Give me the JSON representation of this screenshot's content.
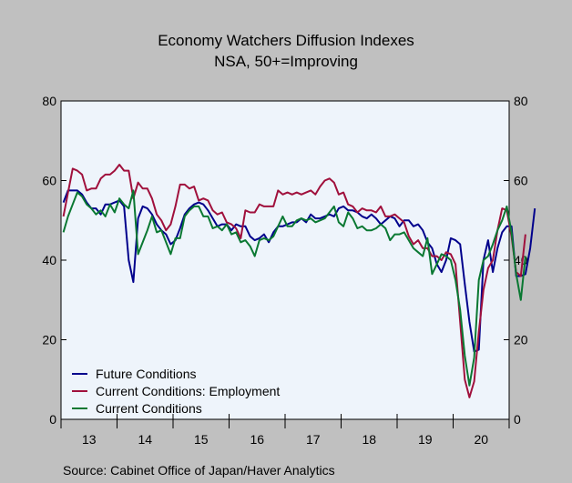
{
  "chart_data": {
    "type": "line",
    "title": "Economy Watchers Diffusion Indexes",
    "subtitle": "NSA, 50+=Improving",
    "source": "Source:  Cabinet Office of Japan/Haver Analytics",
    "x_start": "2013-01",
    "x_end": "2020-12",
    "x_ticks": [
      "13",
      "14",
      "15",
      "16",
      "17",
      "18",
      "19",
      "20"
    ],
    "ylim": [
      0,
      80
    ],
    "y_ticks": [
      "0",
      "20",
      "40",
      "60",
      "80"
    ],
    "legend_position": "bottom-left",
    "grid": false,
    "colors": {
      "background": "#eef4fb",
      "frame": "#c0c0c0"
    },
    "series": [
      {
        "name": "Future Conditions",
        "color": "#00008c",
        "values": [
          54.5,
          57.5,
          57.5,
          57.5,
          56.5,
          54.5,
          53,
          53,
          51.5,
          54,
          54,
          54.5,
          55,
          53.5,
          40,
          34.5,
          50.5,
          53.5,
          53,
          51.5,
          49,
          47.5,
          46.5,
          44,
          45,
          48,
          51.5,
          53,
          54,
          54.5,
          54,
          52.5,
          50.5,
          48.5,
          49,
          49,
          47.5,
          49,
          48.5,
          48.5,
          46,
          45,
          45.5,
          46.5,
          44.5,
          47,
          48.5,
          48.5,
          49,
          49.5,
          49.5,
          50.5,
          49.5,
          51.5,
          50.5,
          50.5,
          51,
          51.5,
          51,
          53,
          53.5,
          52.5,
          52.5,
          52,
          51,
          50.5,
          51.5,
          50.5,
          49,
          50,
          51,
          50.5,
          48.5,
          50,
          50,
          48.5,
          49,
          47.5,
          44.5,
          43,
          39,
          37,
          40,
          45.5,
          45,
          44,
          34,
          24.5,
          17,
          17.5,
          40,
          45,
          37,
          43,
          47,
          48.5,
          48.5,
          36,
          36,
          36.5,
          43,
          53
        ]
      },
      {
        "name": "Current Conditions: Employment",
        "color": "#a0103c",
        "values": [
          51,
          57,
          63,
          62.5,
          61.5,
          57.5,
          58,
          58,
          60.5,
          61.5,
          61.5,
          62.5,
          64,
          62.5,
          62.5,
          55.5,
          59.5,
          58,
          58,
          55.5,
          51.5,
          50,
          47.5,
          49,
          53.5,
          59,
          59,
          58,
          58.5,
          55,
          55.5,
          55,
          52.5,
          51.5,
          52,
          49.5,
          49,
          48,
          45.5,
          52.5,
          52,
          52,
          54,
          53.5,
          53.5,
          53.5,
          57.5,
          56.5,
          57,
          56.5,
          57,
          56.5,
          57,
          57.5,
          56.5,
          58.5,
          60,
          60.5,
          59.5,
          56.5,
          57,
          54,
          53.5,
          52,
          53,
          52.5,
          52.5,
          52,
          53.5,
          51,
          51,
          51.5,
          50.5,
          49.5,
          46,
          44,
          45,
          43,
          43,
          41,
          41,
          40,
          42,
          41.5,
          39,
          24.5,
          10,
          5.5,
          9.5,
          22,
          32.5,
          38,
          40,
          47.5,
          53,
          52.5,
          46,
          37,
          36,
          46.5
        ]
      },
      {
        "name": "Current Conditions",
        "color": "#0a7832",
        "values": [
          47,
          51,
          54,
          57,
          56,
          54,
          53,
          51.5,
          52.5,
          51,
          54,
          52,
          55.5,
          54,
          53,
          57.5,
          41.5,
          44.5,
          47.5,
          51,
          47,
          47.5,
          44.5,
          41.5,
          45.5,
          45.5,
          51,
          52.5,
          53.5,
          53.5,
          51,
          51,
          48,
          48.5,
          47.5,
          49,
          46.5,
          47,
          44.5,
          45,
          43.5,
          41,
          45,
          45.5,
          45,
          46,
          48.5,
          51,
          48.5,
          48.5,
          50,
          50.5,
          50,
          50.5,
          49.5,
          50,
          50.5,
          52,
          53.5,
          49.5,
          48.5,
          52,
          50.5,
          48,
          48.5,
          47.5,
          47.5,
          48,
          49,
          48,
          45,
          46.5,
          46.5,
          47,
          45,
          43,
          42,
          41,
          45.5,
          36.5,
          39,
          41.5,
          41,
          40,
          35,
          27.5,
          16,
          8.5,
          15.5,
          35,
          40,
          41,
          44,
          47.5,
          50,
          53.5,
          47,
          36.5,
          30,
          41
        ]
      }
    ]
  }
}
